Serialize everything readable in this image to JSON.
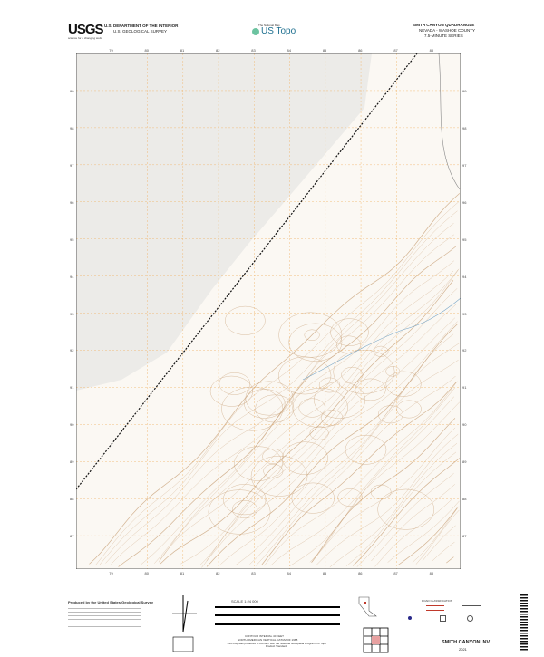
{
  "header": {
    "agency_logo": "USGS",
    "agency_tagline": "science for a changing world",
    "department": "U.S. DEPARTMENT OF THE INTERIOR",
    "survey": "U.S. GEOLOGICAL SURVEY",
    "series_logo_small": "The National Map",
    "series_logo": "US Topo",
    "quad_title": "SMITH CANYON QUADRANGLE",
    "state_county": "NEVADA - WASHOE COUNTY",
    "series": "7.5-MINUTE SERIES"
  },
  "map": {
    "top_ticks": [
      "79",
      "80",
      "81",
      "82",
      "83",
      "84",
      "85",
      "86",
      "87",
      "88"
    ],
    "bottom_ticks": [
      "79",
      "80",
      "81",
      "82",
      "83",
      "84",
      "85",
      "86",
      "87",
      "88"
    ],
    "side_ticks": [
      "99",
      "98",
      "97",
      "96",
      "95",
      "94",
      "93",
      "92",
      "91",
      "90",
      "89",
      "88",
      "87"
    ],
    "colors": {
      "paper": "#fbf8f3",
      "playa": "#ecebe8",
      "contour": "#c9a27a",
      "grid": "#f0b060",
      "railroad": "#111111",
      "water": "#7aa7c8"
    }
  },
  "footer": {
    "producer": "Produced by the United States Geological Survey",
    "scale": "SCALE 1:24 000",
    "contour_note": "CONTOUR INTERVAL 40 FEET",
    "datum_note": "NORTH AMERICAN VERTICAL DATUM OF 1988",
    "standard_note": "This map was produced to conform with the National Geospatial Program US Topo Product Standard.",
    "road_legend_title": "ROAD CLASSIFICATION",
    "quad_name": "SMITH CANYON, NV",
    "year": "2021"
  }
}
